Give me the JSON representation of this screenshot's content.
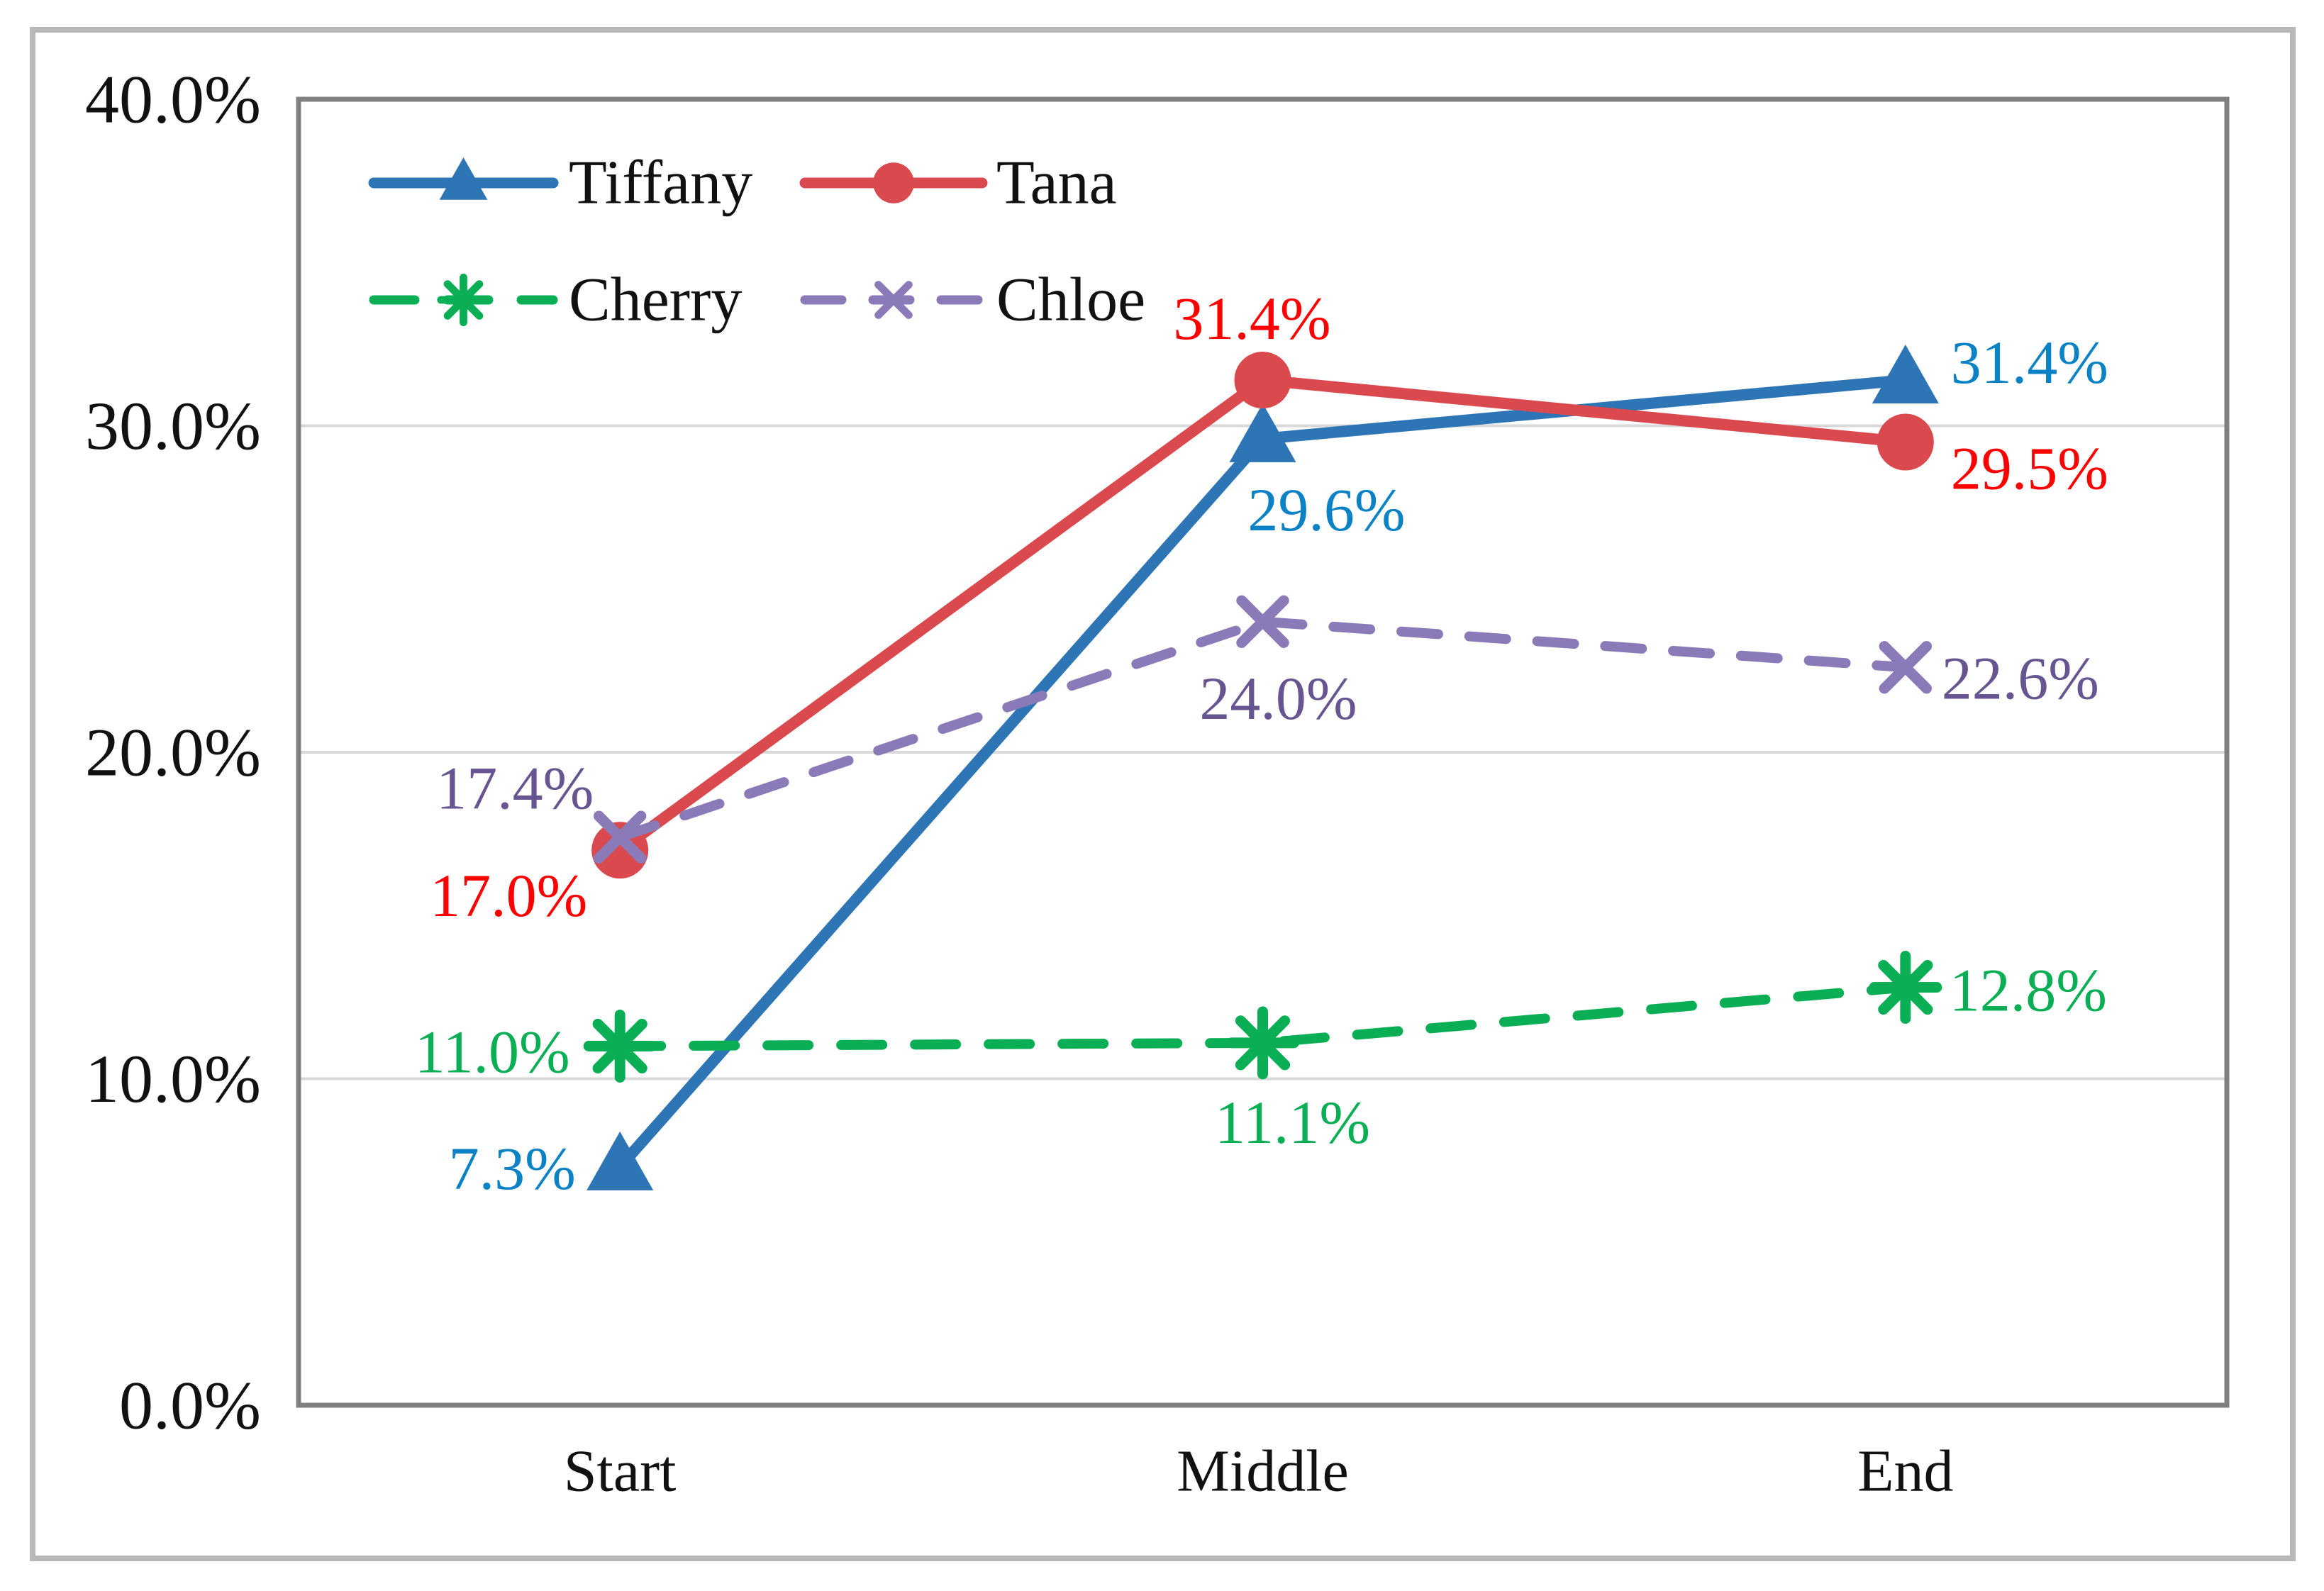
{
  "colors": {
    "outer_frame": "#B8B8B8",
    "plot_border": "#7F7F7F",
    "grid": "#D9D9D9",
    "tick_text": "#111111",
    "legend_text": "#111111",
    "background": "#FFFFFF"
  },
  "chart_data": {
    "type": "line",
    "title": "",
    "xlabel": "",
    "ylabel": "",
    "grid": true,
    "legend_position": "inside-top-left",
    "legend_columns": 2,
    "categories": [
      "Start",
      "Middle",
      "End"
    ],
    "ylim": [
      0,
      40
    ],
    "yticks": [
      {
        "value": 0,
        "label": "0.0%"
      },
      {
        "value": 10,
        "label": "10.0%"
      },
      {
        "value": 20,
        "label": "20.0%"
      },
      {
        "value": 30,
        "label": "30.0%"
      },
      {
        "value": 40,
        "label": "40.0%"
      }
    ],
    "series": [
      {
        "name": "Tiffany",
        "values": [
          7.3,
          29.6,
          31.4
        ],
        "point_labels": [
          "7.3%",
          "29.6%",
          "31.4%"
        ],
        "marker": "triangle",
        "line_style": "solid",
        "dash_pattern": "",
        "line_color": "#2E75B6",
        "marker_color": "#2E75B6",
        "label_color": "#0C82C6",
        "label_offsets": [
          [
            -152,
            2
          ],
          [
            90,
            100
          ],
          [
            175,
            -25
          ]
        ]
      },
      {
        "name": "Tana",
        "values": [
          17.0,
          31.4,
          29.5
        ],
        "point_labels": [
          "17.0%",
          "31.4%",
          "29.5%"
        ],
        "marker": "circle",
        "line_style": "solid",
        "dash_pattern": "",
        "line_color": "#D9494E",
        "marker_color": "#D9494E",
        "label_color": "#FF0000",
        "label_offsets": [
          [
            -157,
            64
          ],
          [
            -15,
            -87
          ],
          [
            175,
            37
          ]
        ]
      },
      {
        "name": "Cherry",
        "values": [
          11.0,
          11.1,
          12.8
        ],
        "point_labels": [
          "11.0%",
          "11.1%",
          "12.8%"
        ],
        "marker": "asterisk",
        "line_style": "dashed",
        "dash_pattern": "58 46",
        "line_color": "#0AAE54",
        "marker_color": "#0AAE54",
        "label_color": "#0AAE54",
        "label_offsets": [
          [
            -180,
            8
          ],
          [
            42,
            112
          ],
          [
            173,
            4
          ]
        ]
      },
      {
        "name": "Chloe",
        "values": [
          17.4,
          24.0,
          22.6
        ],
        "point_labels": [
          "17.4%",
          "24.0%",
          "22.6%"
        ],
        "marker": "x",
        "line_style": "dashed",
        "dash_pattern": "52 44",
        "line_color": "#8B7AB8",
        "marker_color": "#8B7AB8",
        "label_color": "#665590",
        "label_offsets": [
          [
            -148,
            -69
          ],
          [
            22,
            108
          ],
          [
            162,
            15
          ]
        ]
      }
    ]
  }
}
